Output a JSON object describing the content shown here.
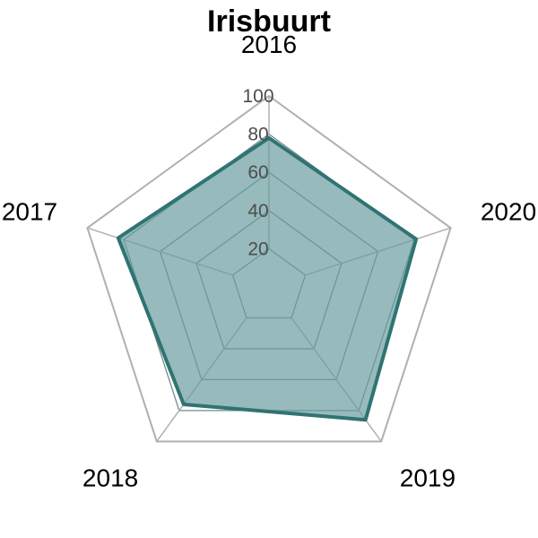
{
  "chart_data": {
    "type": "radar",
    "title": "Irisbuurt",
    "categories": [
      "2016",
      "2020",
      "2019",
      "2018",
      "2017"
    ],
    "series": [
      {
        "values": [
          78,
          81,
          86,
          76,
          83
        ]
      }
    ],
    "rlim": [
      0,
      100
    ],
    "rticks": [
      "20",
      "40",
      "60",
      "80",
      "100"
    ],
    "grid": true,
    "legend": "none",
    "colors": {
      "fill": "#6b9c9f",
      "stroke": "#2f7472",
      "outer_grid": "#b0b0b0",
      "inner_grid": "#6f8c8d",
      "tick_text": "#4d4d4d"
    }
  }
}
